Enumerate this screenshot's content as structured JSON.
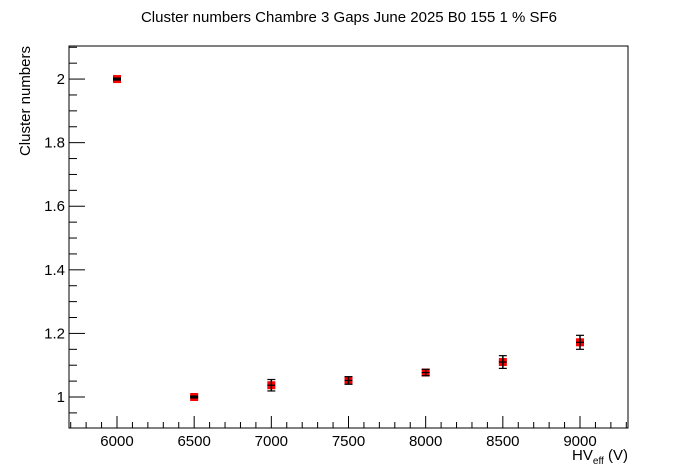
{
  "chart_data": {
    "type": "scatter",
    "title": "Cluster numbers Chambre 3 Gaps June 2025 B0 155 1 % SF6",
    "xlabel": "HV_eff (V)",
    "xlabel_main": "HV",
    "xlabel_sub": "eff",
    "xlabel_unit": " (V)",
    "ylabel": "Cluster numbers",
    "xlim": [
      5689,
      9311
    ],
    "ylim": [
      0.9025,
      2.104
    ],
    "x_ticks": [
      6000,
      6500,
      7000,
      7500,
      8000,
      8500,
      9000
    ],
    "y_ticks": [
      1,
      1.2,
      1.4,
      1.6,
      1.8,
      2
    ],
    "y_tick_labels": [
      "1",
      "1.2",
      "1.4",
      "1.6",
      "1.8",
      "2"
    ],
    "grid": false,
    "legend": null,
    "marker_color": "#ff0000",
    "error_bar_color": "#000000",
    "series": [
      {
        "name": "Cluster numbers",
        "x": [
          6000,
          6500,
          7000,
          7500,
          8000,
          8500,
          9000
        ],
        "y": [
          2.0,
          1.0,
          1.037,
          1.052,
          1.077,
          1.11,
          1.172
        ],
        "yerr": [
          0.003,
          0.003,
          0.018,
          0.012,
          0.01,
          0.02,
          0.022
        ]
      }
    ]
  }
}
